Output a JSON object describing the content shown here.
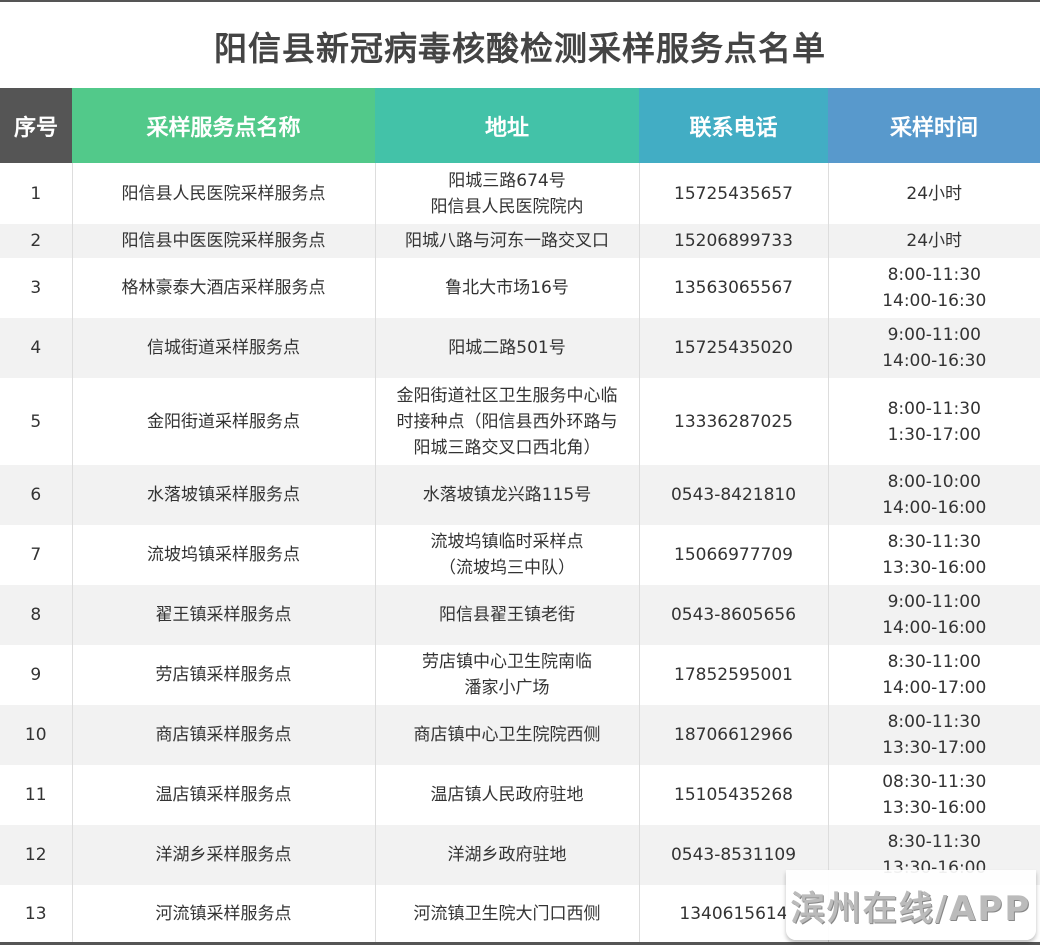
{
  "title": "阳信县新冠病毒核酸检测采样服务点名单",
  "header_colors": [
    "#555555",
    "#52c98a",
    "#43c2a8",
    "#42adc4",
    "#5899cc"
  ],
  "columns": [
    "序号",
    "采样服务点名称",
    "地址",
    "联系电话",
    "采样时间"
  ],
  "rows": [
    {
      "no": "1",
      "name": "阳信县人民医院采样服务点",
      "address": "阳城三路674号\n阳信县人民医院院内",
      "phone": "15725435657",
      "time": "24小时"
    },
    {
      "no": "2",
      "name": "阳信县中医医院采样服务点",
      "address": "阳城八路与河东一路交叉口",
      "phone": "15206899733",
      "time": "24小时"
    },
    {
      "no": "3",
      "name": "格林豪泰大酒店采样服务点",
      "address": "鲁北大市场16号",
      "phone": "13563065567",
      "time": "8:00-11:30\n14:00-16:30"
    },
    {
      "no": "4",
      "name": "信城街道采样服务点",
      "address": "阳城二路501号",
      "phone": "15725435020",
      "time": "9:00-11:00\n14:00-16:30"
    },
    {
      "no": "5",
      "name": "金阳街道采样服务点",
      "address": "金阳街道社区卫生服务中心临\n时接种点（阳信县西外环路与\n阳城三路交叉口西北角）",
      "phone": "13336287025",
      "time": "8:00-11:30\n1:30-17:00"
    },
    {
      "no": "6",
      "name": "水落坡镇采样服务点",
      "address": "水落坡镇龙兴路115号",
      "phone": "0543-8421810",
      "time": "8:00-10:00\n14:00-16:00"
    },
    {
      "no": "7",
      "name": "流坡坞镇采样服务点",
      "address": "流坡坞镇临时采样点\n（流坡坞三中队）",
      "phone": "15066977709",
      "time": "8:30-11:30\n13:30-16:00"
    },
    {
      "no": "8",
      "name": "翟王镇采样服务点",
      "address": "阳信县翟王镇老街",
      "phone": "0543-8605656",
      "time": "9:00-11:00\n14:00-16:00"
    },
    {
      "no": "9",
      "name": "劳店镇采样服务点",
      "address": "劳店镇中心卫生院南临\n潘家小广场",
      "phone": "17852595001",
      "time": "8:30-11:00\n14:00-17:00"
    },
    {
      "no": "10",
      "name": "商店镇采样服务点",
      "address": "商店镇中心卫生院院西侧",
      "phone": "18706612966",
      "time": "8:00-11:30\n13:30-17:00"
    },
    {
      "no": "11",
      "name": "温店镇采样服务点",
      "address": "温店镇人民政府驻地",
      "phone": "15105435268",
      "time": "08:30-11:30\n13:30-16:00"
    },
    {
      "no": "12",
      "name": "洋湖乡采样服务点",
      "address": "洋湖乡政府驻地",
      "phone": "0543-8531109",
      "time": "8:30-11:30\n13:30-16:00"
    },
    {
      "no": "13",
      "name": "河流镇采样服务点",
      "address": "河流镇卫生院大门口西侧",
      "phone": "1340615614",
      "time": ""
    }
  ],
  "watermark": "滨州在线/APP"
}
